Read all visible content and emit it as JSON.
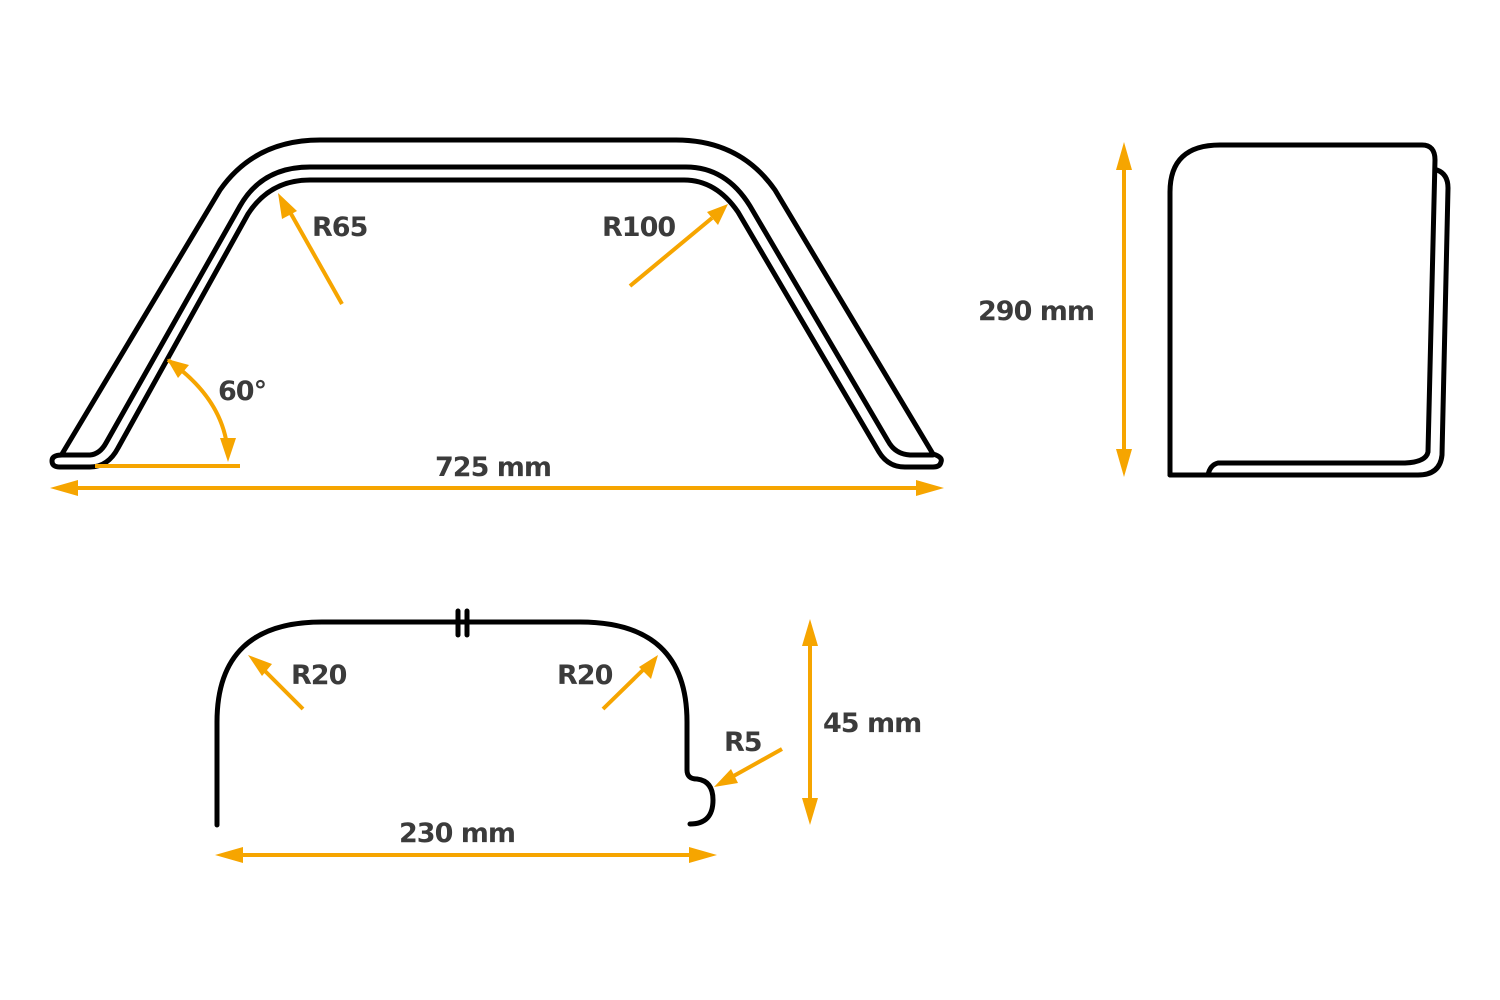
{
  "colors": {
    "dimension": "#F6A500",
    "outline": "#000000",
    "text": "#3b3b3b"
  },
  "front_view": {
    "radius_left": "R65",
    "radius_right": "R100",
    "angle": "60°",
    "width": "725 mm"
  },
  "side_view": {
    "height": "290 mm"
  },
  "profile_view": {
    "radius_left": "R20",
    "radius_right": "R20",
    "radius_edge": "R5",
    "height": "45 mm",
    "width": "230 mm"
  }
}
